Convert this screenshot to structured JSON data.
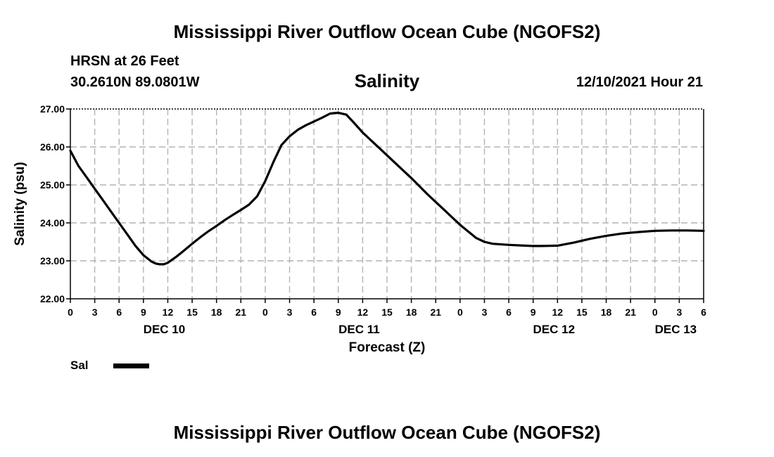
{
  "header": {
    "title": "Mississippi River Outflow Ocean Cube (NGOFS2)",
    "footer_title": "Mississippi River Outflow Ocean Cube (NGOFS2)",
    "station": "HRSN at 26 Feet",
    "coords": "30.2610N  89.0801W",
    "subtitle": "Salinity",
    "datetime": "12/10/2021 Hour 21"
  },
  "legend": {
    "label": "Sal",
    "color": "#000000"
  },
  "chart_data": {
    "type": "line",
    "title": "Salinity",
    "xlabel": "Forecast (Z)",
    "ylabel": "Salinity (psu)",
    "xlim": [
      0,
      78
    ],
    "ylim": [
      22.0,
      27.0
    ],
    "grid": true,
    "y_ticks": [
      "22.00",
      "23.00",
      "24.00",
      "25.00",
      "26.00",
      "27.00"
    ],
    "x_ticks": [
      {
        "hour": 0,
        "label": "0"
      },
      {
        "hour": 3,
        "label": "3"
      },
      {
        "hour": 6,
        "label": "6"
      },
      {
        "hour": 9,
        "label": "9"
      },
      {
        "hour": 12,
        "label": "12"
      },
      {
        "hour": 15,
        "label": "15"
      },
      {
        "hour": 18,
        "label": "18"
      },
      {
        "hour": 21,
        "label": "21"
      },
      {
        "hour": 24,
        "label": "0"
      },
      {
        "hour": 27,
        "label": "3"
      },
      {
        "hour": 30,
        "label": "6"
      },
      {
        "hour": 33,
        "label": "9"
      },
      {
        "hour": 36,
        "label": "12"
      },
      {
        "hour": 39,
        "label": "15"
      },
      {
        "hour": 42,
        "label": "18"
      },
      {
        "hour": 45,
        "label": "21"
      },
      {
        "hour": 48,
        "label": "0"
      },
      {
        "hour": 51,
        "label": "3"
      },
      {
        "hour": 54,
        "label": "6"
      },
      {
        "hour": 57,
        "label": "9"
      },
      {
        "hour": 60,
        "label": "12"
      },
      {
        "hour": 63,
        "label": "15"
      },
      {
        "hour": 66,
        "label": "18"
      },
      {
        "hour": 69,
        "label": "21"
      },
      {
        "hour": 72,
        "label": "0"
      },
      {
        "hour": 75,
        "label": "3"
      },
      {
        "hour": 78,
        "label": "6"
      }
    ],
    "day_labels": [
      {
        "hour": 12,
        "label": "DEC 10"
      },
      {
        "hour": 36,
        "label": "DEC 11"
      },
      {
        "hour": 60,
        "label": "DEC 12"
      },
      {
        "hour": 75,
        "label": "DEC 13"
      }
    ],
    "series": [
      {
        "name": "Sal",
        "color": "#000000",
        "x": [
          0,
          1,
          2,
          3,
          4,
          5,
          6,
          7,
          8,
          9,
          10,
          10.5,
          11,
          11.5,
          12,
          13,
          14,
          15,
          16,
          17,
          18,
          19,
          20,
          21,
          22,
          23,
          24,
          25,
          26,
          27,
          28,
          29,
          30,
          31,
          32,
          33,
          34,
          35,
          36,
          38,
          40,
          42,
          44,
          46,
          48,
          50,
          51,
          52,
          54,
          56,
          57,
          58,
          60,
          62,
          64,
          66,
          68,
          70,
          72,
          74,
          76,
          78
        ],
        "y": [
          25.9,
          25.5,
          25.2,
          24.9,
          24.6,
          24.3,
          24.0,
          23.7,
          23.4,
          23.15,
          22.98,
          22.93,
          22.91,
          22.91,
          22.95,
          23.1,
          23.27,
          23.45,
          23.62,
          23.78,
          23.92,
          24.07,
          24.21,
          24.34,
          24.48,
          24.7,
          25.1,
          25.6,
          26.05,
          26.28,
          26.45,
          26.57,
          26.67,
          26.77,
          26.88,
          26.9,
          26.85,
          26.62,
          26.38,
          25.98,
          25.58,
          25.18,
          24.75,
          24.35,
          23.95,
          23.6,
          23.5,
          23.45,
          23.42,
          23.4,
          23.39,
          23.39,
          23.4,
          23.48,
          23.58,
          23.66,
          23.72,
          23.76,
          23.79,
          23.8,
          23.8,
          23.79
        ]
      }
    ]
  }
}
